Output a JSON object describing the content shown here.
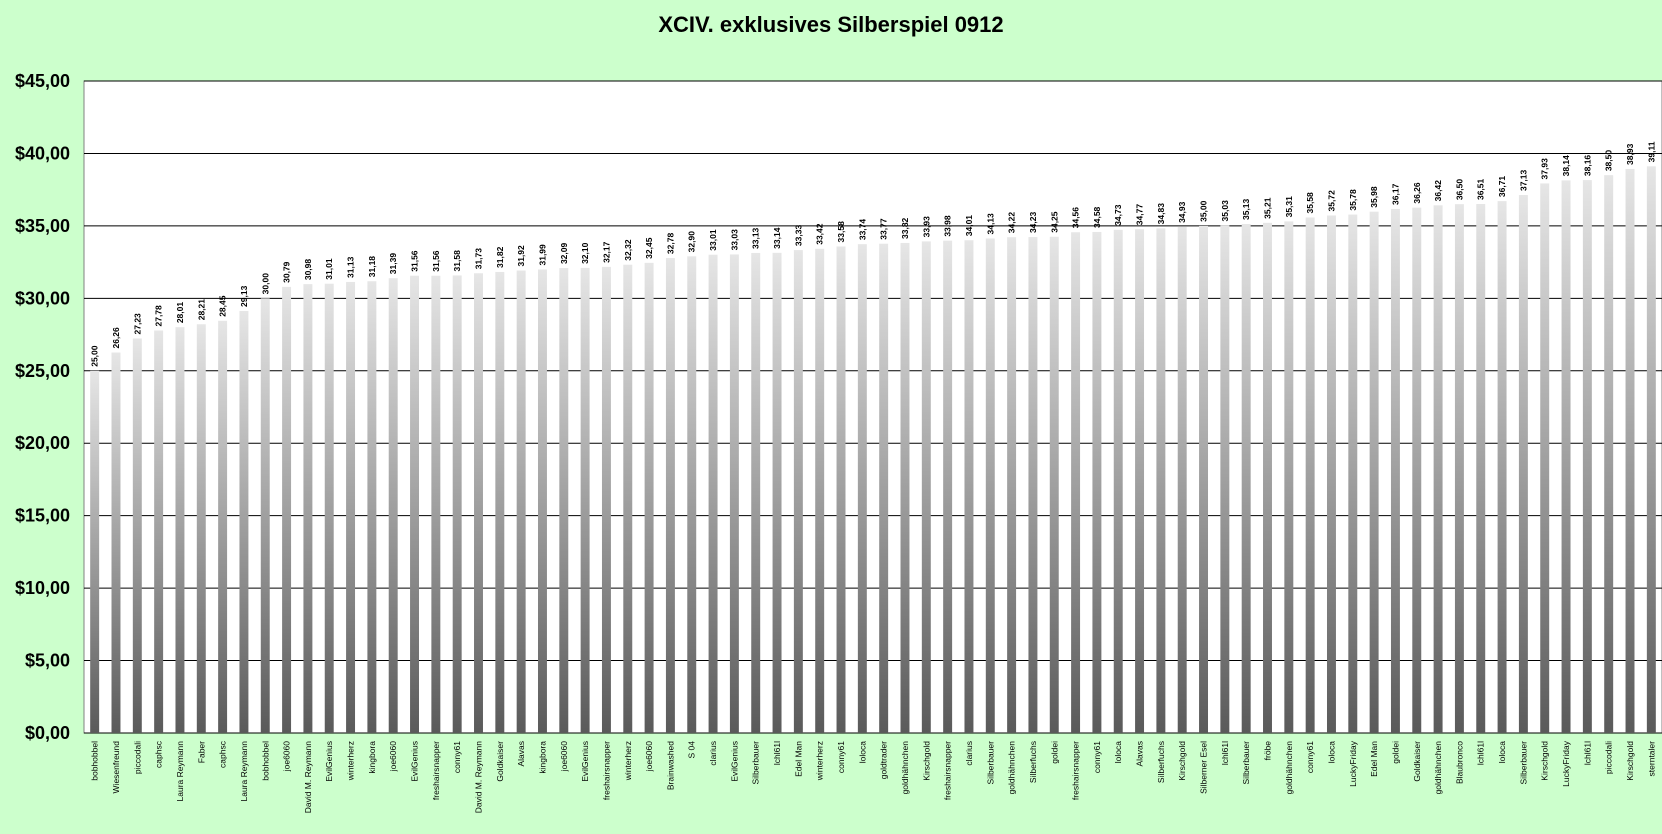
{
  "chart_data": {
    "type": "bar",
    "title": "XCIV. exklusives Silberspiel 0912",
    "xlabel": "",
    "ylabel": "",
    "ylim": [
      0,
      45
    ],
    "grid": true,
    "y_ticks": [
      "$0,00",
      "$5,00",
      "$10,00",
      "$15,00",
      "$20,00",
      "$25,00",
      "$30,00",
      "$35,00",
      "$40,00",
      "$45,00"
    ],
    "categories": [
      "bobhobbel",
      "Wiesenfreund",
      "piccodali",
      "caphsc",
      "Laura Reymann",
      "Faber",
      "caphsc",
      "Laura Reymann",
      "bobhobbel",
      "joe6060",
      "David M. Reymann",
      "EvilGenius",
      "winterherz",
      "kingbora",
      "joe6060",
      "EvilGenius",
      "freshairsnapper",
      "conny61",
      "David M. Reymann",
      "Goldkaiser",
      "Alavas",
      "kingbora",
      "joe6060",
      "EvilGenius",
      "freshairsnapper",
      "winterherz",
      "joe6060",
      "Brainwashed",
      "S 04",
      "clarius",
      "EvilGenius",
      "Silberbauer",
      "lchl61l",
      "Edel Man",
      "winterherz",
      "conny61",
      "loloca",
      "goldtrader",
      "goldhähnchen",
      "Kirschgold",
      "freshairsnapper",
      "clarius",
      "Silberbauer",
      "goldhähnchen",
      "Silberfuchs",
      "goldei",
      "freshairsnapper",
      "conny61",
      "loloca",
      "Alavas",
      "Silberfuchs",
      "Kirschgold",
      "Silberner Esel",
      "lchl61l",
      "Silberbauer",
      "fröbe",
      "goldhähnchen",
      "conny61",
      "loloca",
      "LuckyFriday",
      "Edel Man",
      "goldei",
      "Goldkaiser",
      "goldhähnchen",
      "Blaubronco",
      "lchl61l",
      "loloca",
      "Silberbauer",
      "Kirschgold",
      "LuckyFriday",
      "lchl61l",
      "piccodali",
      "Kirschgold",
      "sterntaler"
    ],
    "values": [
      25.0,
      26.26,
      27.23,
      27.78,
      28.01,
      28.21,
      28.45,
      29.13,
      30.0,
      30.79,
      30.98,
      31.01,
      31.13,
      31.18,
      31.39,
      31.56,
      31.56,
      31.58,
      31.73,
      31.82,
      31.92,
      31.99,
      32.09,
      32.1,
      32.17,
      32.32,
      32.45,
      32.78,
      32.9,
      33.01,
      33.03,
      33.13,
      33.14,
      33.33,
      33.42,
      33.58,
      33.74,
      33.77,
      33.82,
      33.93,
      33.98,
      34.01,
      34.13,
      34.22,
      34.23,
      34.25,
      34.56,
      34.58,
      34.73,
      34.77,
      34.83,
      34.93,
      35.0,
      35.03,
      35.13,
      35.21,
      35.31,
      35.58,
      35.72,
      35.78,
      35.98,
      36.17,
      36.26,
      36.42,
      36.5,
      36.51,
      36.71,
      37.13,
      37.93,
      38.14,
      38.16,
      38.5,
      38.93,
      39.11
    ],
    "data_labels": [
      "25,00",
      "26,26",
      "27,23",
      "27,78",
      "28,01",
      "28,21",
      "28,45",
      "29,13",
      "30,00",
      "30,79",
      "30,98",
      "31,01",
      "31,13",
      "31,18",
      "31,39",
      "31,56",
      "31,56",
      "31,58",
      "31,73",
      "31,82",
      "31,92",
      "31,99",
      "32,09",
      "32,10",
      "32,17",
      "32,32",
      "32,45",
      "32,78",
      "32,90",
      "33,01",
      "33,03",
      "33,13",
      "33,14",
      "33,33",
      "33,42",
      "33,58",
      "33,74",
      "33,77",
      "33,82",
      "33,93",
      "33,98",
      "34,01",
      "34,13",
      "34,22",
      "34,23",
      "34,25",
      "34,56",
      "34,58",
      "34,73",
      "34,77",
      "34,83",
      "34,93",
      "35,00",
      "35,03",
      "35,13",
      "35,21",
      "35,31",
      "35,58",
      "35,72",
      "35,78",
      "35,98",
      "36,17",
      "36,26",
      "36,42",
      "36,50",
      "36,51",
      "36,71",
      "37,13",
      "37,93",
      "38,14",
      "38,16",
      "38,50",
      "38,93",
      "39,11"
    ],
    "legend": "none"
  },
  "colors": {
    "background": "#ccffcc",
    "plot_area": "#ffffff",
    "bar_light": "#e6e6e6",
    "bar_dark": "#5a5a5a",
    "gridline": "#000000"
  }
}
